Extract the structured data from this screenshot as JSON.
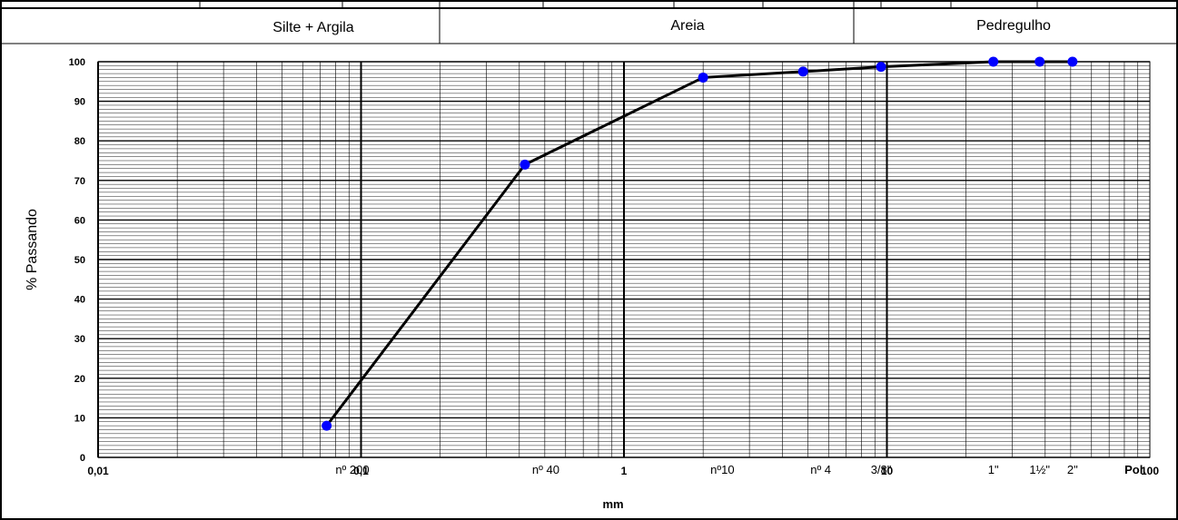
{
  "header": {
    "bands": [
      "Silte + Argila",
      "Areia",
      "Pedregulho"
    ]
  },
  "chart_data": {
    "type": "line",
    "title": "",
    "xlabel": "mm",
    "ylabel": "% Passando",
    "x_scale": "log",
    "xlim": [
      0.01,
      100
    ],
    "ylim": [
      0,
      100
    ],
    "grid": true,
    "x_ticks": [
      {
        "value": 0.01,
        "label": "0,01"
      },
      {
        "value": 0.1,
        "label": "0,1"
      },
      {
        "value": 1,
        "label": "1"
      },
      {
        "value": 10,
        "label": "10"
      },
      {
        "value": 100,
        "label": "100"
      }
    ],
    "y_ticks": [
      0,
      10,
      20,
      30,
      40,
      50,
      60,
      70,
      80,
      90,
      100
    ],
    "sieve_labels": [
      {
        "value": 0.075,
        "label": "nº 200"
      },
      {
        "value": 0.42,
        "label": "nº 40"
      },
      {
        "value": 2.0,
        "label": "nº10"
      },
      {
        "value": 4.8,
        "label": "nº 4"
      },
      {
        "value": 9.5,
        "label": "3/8\""
      },
      {
        "value": 25.4,
        "label": "1\""
      },
      {
        "value": 38.1,
        "label": "1½\""
      },
      {
        "value": 50.8,
        "label": "2\""
      }
    ],
    "axis_unit_label": "Pol.",
    "series": [
      {
        "x": [
          0.074,
          0.42,
          2.0,
          4.8,
          9.5,
          25.4,
          38.1,
          50.8
        ],
        "y": [
          8,
          74,
          96,
          97.5,
          98.7,
          100,
          100,
          100
        ]
      }
    ],
    "colors": {
      "points": "#0000ff",
      "line": "#000000",
      "grid": "#000000"
    }
  }
}
